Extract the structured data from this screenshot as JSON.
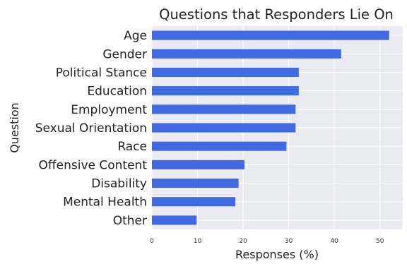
{
  "chart_data": {
    "type": "bar",
    "orientation": "horizontal",
    "title": "Questions that Responders Lie On",
    "xlabel": "Responses (%)",
    "ylabel": "Question",
    "categories": [
      "Age",
      "Gender",
      "Political Stance",
      "Education",
      "Employment",
      "Sexual Orientation",
      "Race",
      "Offensive Content",
      "Disability",
      "Mental Health",
      "Other"
    ],
    "values": [
      52,
      41.5,
      32.2,
      32.2,
      31.5,
      31.5,
      29.5,
      20.3,
      19,
      18.3,
      9.8
    ],
    "xlim": [
      0,
      55
    ],
    "xticks": [
      "0",
      "10",
      "20",
      "30",
      "40",
      "50"
    ],
    "grid": true,
    "bar_color": "#4169e1",
    "plot_background": "#eaeaf2",
    "grid_color": "#ffffff"
  }
}
